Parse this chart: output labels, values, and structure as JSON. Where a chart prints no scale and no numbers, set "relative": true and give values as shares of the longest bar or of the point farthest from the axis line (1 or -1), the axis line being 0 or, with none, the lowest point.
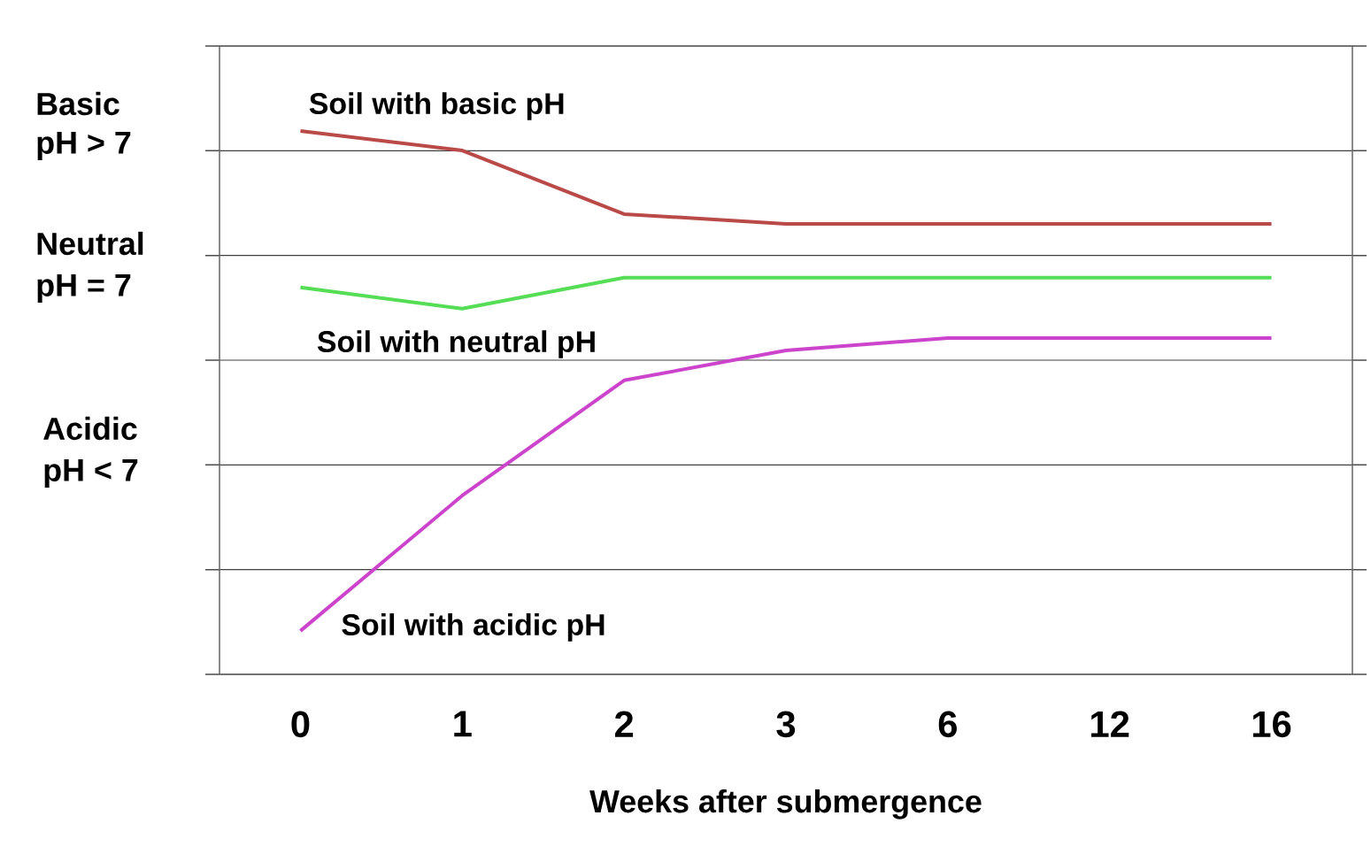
{
  "chart_data": {
    "type": "line",
    "relative": true,
    "xlabel": "Weeks after submergence",
    "categories": [
      "0",
      "1",
      "2",
      "3",
      "6",
      "12",
      "16"
    ],
    "series": [
      {
        "name": "Soil with basic pH",
        "color": "#b94a48",
        "values": [
          1.0,
          0.964,
          0.847,
          0.829,
          0.829,
          0.829,
          0.829
        ]
      },
      {
        "name": "Soil with neutral pH",
        "color": "#55dd55",
        "values": [
          0.712,
          0.673,
          0.73,
          0.73,
          0.73,
          0.73,
          0.73
        ]
      },
      {
        "name": "Soil with acidic pH",
        "color": "#cc44cc",
        "values": [
          0.08,
          0.329,
          0.541,
          0.596,
          0.619,
          0.619,
          0.619
        ]
      }
    ],
    "annotations": [
      "Basic",
      "pH > 7",
      "Neutral",
      "pH = 7",
      "Acidic",
      "pH < 7"
    ],
    "grid": "y",
    "legend": false,
    "marker": "none",
    "line_style": "solid"
  }
}
